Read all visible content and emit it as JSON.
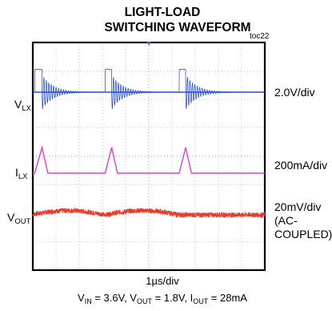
{
  "title_line1": "LIGHT-LOAD",
  "title_line2": "SWITCHING WAVEFORM",
  "figure_tag": "toc22",
  "chart_data": {
    "type": "line",
    "title": "LIGHT-LOAD SWITCHING WAVEFORM",
    "grid": true,
    "xlim": [
      0,
      10
    ],
    "x_divisions": 10,
    "y_divisions": 8,
    "timebase": "1µs/div",
    "conditions": {
      "vin_label": "V",
      "vin_sub": "IN",
      "vin_value": " = 3.6V, ",
      "vout_label": "V",
      "vout_sub": "OUT",
      "vout_value": " = 1.8V, ",
      "iout_label": "I",
      "iout_sub": "OUT",
      "iout_value": " = 28mA"
    },
    "channels": [
      {
        "name": "V",
        "sub": "LX",
        "scale": "2.0V/div",
        "color": "#1b3fd6",
        "high_div": 1.0,
        "pulses": [
          {
            "start": 0.08,
            "end": 0.4
          },
          {
            "start": 3.12,
            "end": 3.4
          },
          {
            "start": 6.31,
            "end": 6.59
          }
        ],
        "ring_freq_per_div": 9.5,
        "ring_decay_divs": 0.85
      },
      {
        "name": "I",
        "sub": "LX",
        "scale": "200mA/div",
        "color": "#e83ae0",
        "peak_div": 0.9,
        "pulses": [
          {
            "start": 0.08,
            "peak": 0.4,
            "end": 0.65
          },
          {
            "start": 3.12,
            "peak": 3.4,
            "end": 3.65
          },
          {
            "start": 6.31,
            "peak": 6.59,
            "end": 6.84
          }
        ]
      },
      {
        "name": "V",
        "sub": "OUT",
        "scale_line1": "20mV/div",
        "scale_line2": "(AC-",
        "scale_line3": "COUPLED)",
        "color": "#ea3a2c",
        "ripple_peak_div": 0.3
      }
    ]
  }
}
